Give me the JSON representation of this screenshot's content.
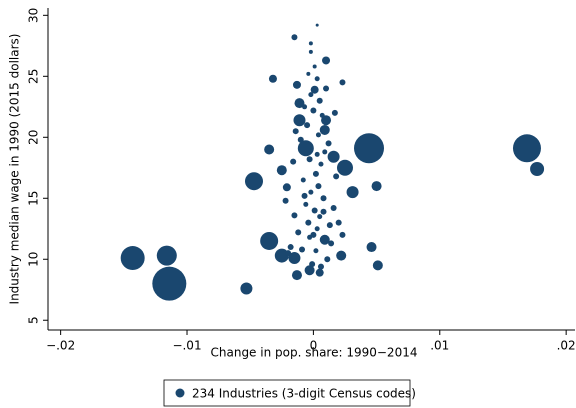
{
  "chart_data": {
    "type": "scatter",
    "xlabel": "Change in pop. share: 1990−2014",
    "ylabel": "Industry median wage in 1990 (2015 dollars)",
    "xlim": [
      -0.021,
      0.0207
    ],
    "ylim": [
      4.2,
      30.6
    ],
    "xticks": [
      {
        "value": -0.02,
        "label": "−.02"
      },
      {
        "value": -0.01,
        "label": "−.01"
      },
      0,
      {
        "value": 0.01,
        "label": ".01"
      },
      {
        "value": 0.02,
        "label": ".02"
      }
    ],
    "yticks": [
      5,
      10,
      15,
      20,
      25,
      30
    ],
    "legend": "bottom",
    "x": [
      -0.0114,
      -0.0143,
      -0.0116,
      -0.0053,
      -0.0035,
      -0.0047,
      0.0044,
      0.0169,
      0.0177,
      0.0025,
      0.0031,
      0.005,
      0.0051,
      0.0046,
      -0.0006,
      0.0016,
      -0.0011,
      0.001,
      -0.0025,
      -0.0035,
      -0.0032,
      -0.0015,
      0.001,
      0.0023,
      0.0003,
      -0.0002,
      -0.0002,
      -0.0025,
      -0.0015,
      -0.0013,
      -0.0003,
      0.0005,
      0.0022,
      0.0009,
      -0.0021,
      0.0009,
      -0.0011,
      0.0001,
      -0.0013,
      0.0,
      0.0003,
      -0.0004,
      0.0005,
      0.0001,
      -0.0006,
      0.0008,
      -0.0002,
      0.0004,
      -0.0008,
      0.0002,
      0.0006,
      -0.0003,
      0.0009,
      -0.001,
      0.0004,
      -0.0005,
      0.0007,
      0.0,
      -0.0007,
      0.0005,
      -0.0002,
      0.001,
      0.0003,
      -0.0004,
      0.0001,
      -0.0012,
      0.0013,
      -0.0015,
      0.0016,
      -0.0018,
      0.0014,
      -0.0009,
      0.0011,
      -0.0001,
      0.0006,
      0.002,
      -0.0022,
      0.0018,
      -0.0016,
      0.0012,
      -0.0014,
      0.0017,
      -0.002,
      0.0023,
      -0.0003,
      0.0002,
      0.0008,
      -0.0007,
      0.0003
    ],
    "series": [
      {
        "name": "234 Industries (3-digit Census codes)",
        "color": "#1a476f",
        "values": [
          8.0,
          10.1,
          10.3,
          7.6,
          11.5,
          16.4,
          19.1,
          19.1,
          17.4,
          17.5,
          15.5,
          16.0,
          9.5,
          11.0,
          19.1,
          18.4,
          21.4,
          21.4,
          17.3,
          19.0,
          24.8,
          28.2,
          26.3,
          24.5,
          29.2,
          27.7,
          27.0,
          10.3,
          10.1,
          8.7,
          9.1,
          8.9,
          10.3,
          11.6,
          15.9,
          20.6,
          22.8,
          23.9,
          24.3,
          12.0,
          12.5,
          13.0,
          13.5,
          14.0,
          14.5,
          15.0,
          15.5,
          16.0,
          16.5,
          17.0,
          17.8,
          18.2,
          18.8,
          19.8,
          20.2,
          21.0,
          21.8,
          22.2,
          22.5,
          23.0,
          23.5,
          24.0,
          24.8,
          25.2,
          25.8,
          12.2,
          12.8,
          13.6,
          14.2,
          11.0,
          11.3,
          10.8,
          10.0,
          9.6,
          9.4,
          13.0,
          14.8,
          16.8,
          18.0,
          19.5,
          20.5,
          22.0,
          10.5,
          12.0,
          11.8,
          10.7,
          13.9,
          15.2,
          18.6
        ],
        "sizes": [
          17,
          12,
          10,
          6,
          9,
          9,
          15,
          14,
          7,
          8,
          6,
          5,
          5,
          5,
          8,
          6,
          6,
          5,
          5,
          5,
          4,
          3,
          4,
          3,
          1.5,
          2,
          2,
          7,
          6,
          5,
          5,
          4,
          5,
          5,
          4,
          5,
          5,
          4,
          4,
          3,
          2.5,
          3,
          2.5,
          3,
          2.5,
          3,
          2.5,
          3,
          2.5,
          3,
          2.5,
          3,
          2.5,
          3,
          2.5,
          3,
          2.5,
          3,
          2.5,
          3,
          2.5,
          3,
          2.5,
          2,
          2,
          3,
          3,
          3,
          3,
          3,
          3,
          3,
          3,
          3,
          3,
          3,
          3,
          3,
          3,
          3,
          3,
          3,
          3,
          3,
          2.5,
          2.5,
          3,
          3,
          2.5
        ]
      }
    ]
  }
}
